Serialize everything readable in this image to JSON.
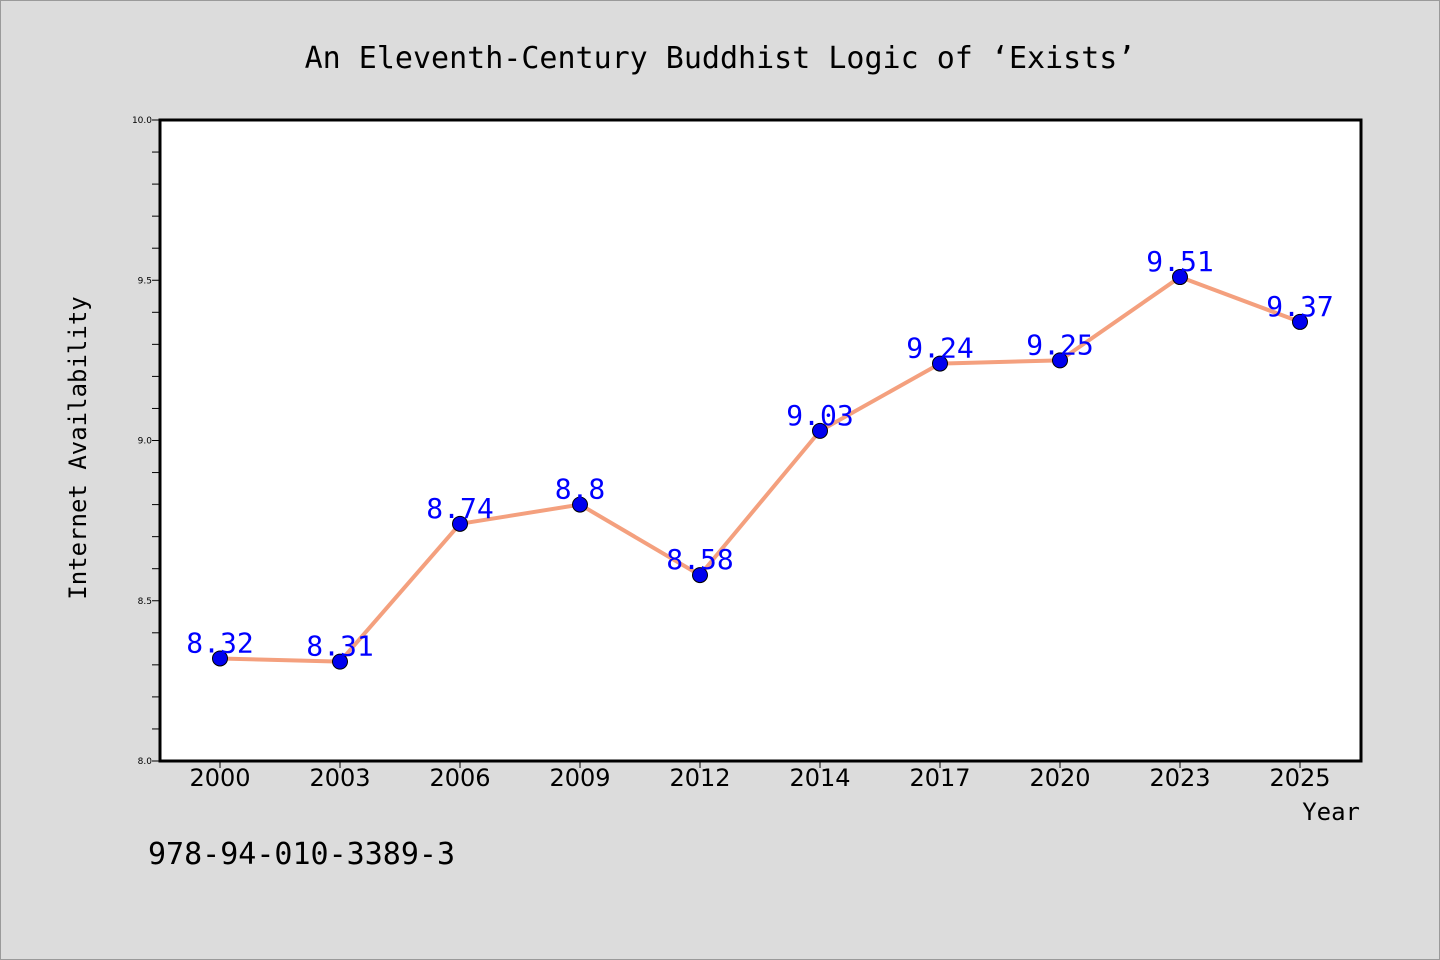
{
  "chart_data": {
    "type": "line",
    "title": "An Eleventh-Century Buddhist Logic of  ‘Exists’",
    "xlabel": "Year",
    "ylabel": "Internet Availability",
    "categories": [
      "2000",
      "2003",
      "2006",
      "2009",
      "2012",
      "2014",
      "2017",
      "2020",
      "2023",
      "2025"
    ],
    "series": [
      {
        "values": [
          8.32,
          8.31,
          8.74,
          8.8,
          8.58,
          9.03,
          9.24,
          9.25,
          9.51,
          9.37
        ],
        "data_labels": [
          "8.32",
          "8.31",
          "8.74",
          "8.8",
          "8.58",
          "9.03",
          "9.24",
          "9.25",
          "9.51",
          "9.37"
        ],
        "line_color": "#f4a07e",
        "marker_color": "#0000ee"
      }
    ],
    "ylim": [
      8.0,
      10.0
    ],
    "yticks": [
      "8.0",
      "8.5",
      "9.0",
      "9.5",
      "10.0"
    ],
    "grid": false,
    "legend": "none"
  },
  "footer": {
    "isbn": "978-94-010-3389-3"
  },
  "colors": {
    "background": "#dcdcdc",
    "plot_background": "#ffffff",
    "data_label": "#0000ff"
  }
}
